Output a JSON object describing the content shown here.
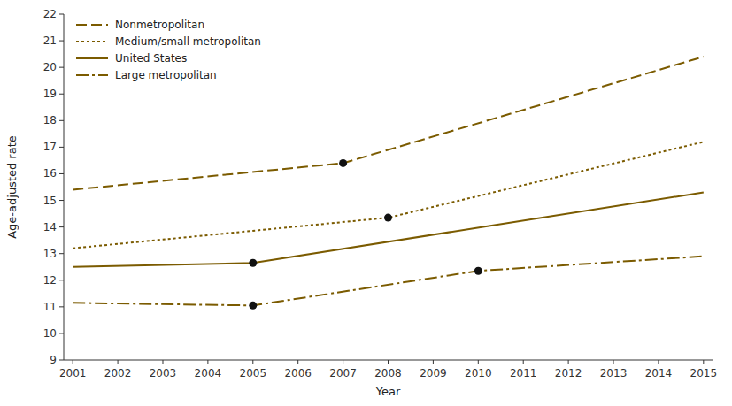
{
  "chart_data": {
    "type": "line",
    "x_label": "Year",
    "y_label": "Age-adjusted rate",
    "xlim": [
      2000.8,
      2015.2
    ],
    "xticks": [
      2001,
      2002,
      2003,
      2004,
      2005,
      2006,
      2007,
      2008,
      2009,
      2010,
      2011,
      2012,
      2013,
      2014,
      2015
    ],
    "ylim": [
      9,
      22
    ],
    "yticks": [
      9,
      10,
      11,
      12,
      13,
      14,
      15,
      16,
      17,
      18,
      19,
      20,
      21,
      22
    ],
    "grid": false,
    "legend": "upper left",
    "series": [
      {
        "name": "Nonmetropolitan",
        "color": "#7B5B00",
        "line_style": "dashed",
        "x": [
          2001,
          2007,
          2015
        ],
        "values": [
          15.4,
          16.4,
          20.4
        ]
      },
      {
        "name": "Medium/small metropolitan",
        "color": "#7B5B00",
        "line_style": "dotted",
        "x": [
          2001,
          2008,
          2015
        ],
        "values": [
          13.2,
          14.35,
          17.2
        ]
      },
      {
        "name": "United States",
        "color": "#7B5B00",
        "line_style": "solid",
        "x": [
          2001,
          2005,
          2015
        ],
        "values": [
          12.5,
          12.65,
          15.3
        ]
      },
      {
        "name": "Large metropolitan",
        "color": "#7B5B00",
        "line_style": "dashdot",
        "x": [
          2001,
          2005,
          2010,
          2015
        ],
        "values": [
          11.15,
          11.05,
          12.35,
          12.9
        ]
      },
      {
        "type": "scatter",
        "marker": "circle",
        "color": "#111111",
        "x": [
          2007,
          2008,
          2005,
          2005,
          2010
        ],
        "values": [
          16.4,
          14.35,
          12.65,
          11.05,
          12.35
        ]
      }
    ]
  }
}
